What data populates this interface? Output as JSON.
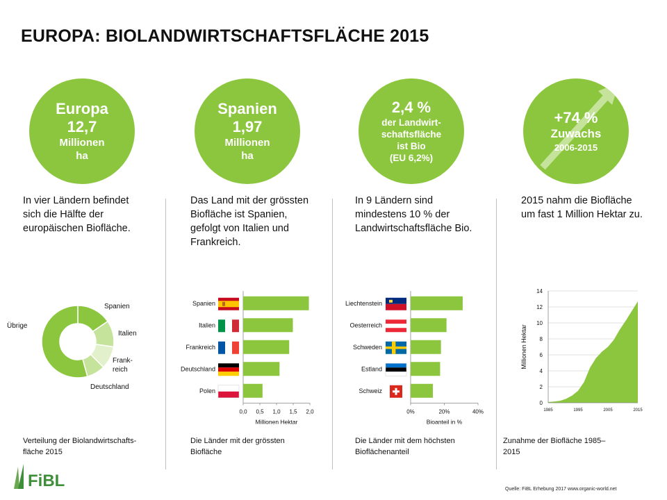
{
  "title": "EUROPA: BIOLANDWIRTSCHAFTSFLÄCHE 2015",
  "stats": [
    {
      "lines": [
        "Europa",
        "12,7",
        "Millionen",
        "ha"
      ]
    },
    {
      "lines": [
        "Spanien",
        "1,97",
        "Millionen",
        "ha"
      ]
    },
    {
      "lines": [
        "2,4 %",
        "der Landwirt-",
        "schaftsfläche",
        "ist Bio",
        "(EU 6,2%)"
      ]
    },
    {
      "lines": [
        "+74 %",
        "Zuwachs",
        "2006-2015"
      ]
    }
  ],
  "descriptions": [
    "In vier Ländern befindet sich die Hälfte der europäischen Biofläche.",
    "Das Land mit der grössten Biofläche ist Spanien, gefolgt von Italien und Frankreich.",
    "In 9 Ländern sind mindestens 10 % der Landwirtschaftsfläche Bio.",
    "2015 nahm die Biofläche um fast 1 Million Hektar zu."
  ],
  "captions": [
    "Verteilung der Biolandwirtschafts-\nfläche 2015",
    "Die Länder mit der grössten\nBiofläche",
    "Die Länder mit dem höchsten\nBioflächenanteil",
    "Zunahme der Biofläche 1985–\n2015"
  ],
  "source": "Quelle: FiBL Erhebung 2017 www.organic-world.net",
  "logo_text": "FiBL",
  "colors": {
    "green": "#8cc63f",
    "light_green": "#c5e39a",
    "pale_green": "#e2f1cc"
  },
  "chart_data": [
    {
      "type": "pie",
      "subtype": "donut",
      "categories": [
        "Spanien",
        "Italien",
        "Frank-\nreich",
        "Deutschland",
        "Übrige"
      ],
      "values": [
        15.5,
        11.8,
        10.2,
        8.2,
        54.3
      ],
      "unit": "%"
    },
    {
      "type": "bar",
      "orientation": "horizontal",
      "categories": [
        "Spanien",
        "Italien",
        "Frankreich",
        "Deutschland",
        "Polen"
      ],
      "flags": [
        "flag-spain",
        "flag-italy",
        "flag-france",
        "flag-germany",
        "flag-poland"
      ],
      "values": [
        1.97,
        1.49,
        1.38,
        1.09,
        0.58
      ],
      "xlabel": "Millionen Hektar",
      "xlim": [
        0,
        2.0
      ],
      "xticks": [
        "0,0",
        "0,5",
        "1,0",
        "1,5",
        "2,0"
      ]
    },
    {
      "type": "bar",
      "orientation": "horizontal",
      "categories": [
        "Liechtenstein",
        "Oesterreich",
        "Schweden",
        "Estland",
        "Schweiz"
      ],
      "flags": [
        "flag-liechtenstein",
        "flag-austria",
        "flag-sweden",
        "flag-estonia",
        "flag-switzerland"
      ],
      "values": [
        30.9,
        21.3,
        18.0,
        17.5,
        13.2
      ],
      "xlabel": "Bioanteil in %",
      "xlim": [
        0,
        40
      ],
      "xticks": [
        "0%",
        "20%",
        "40%"
      ]
    },
    {
      "type": "area",
      "x": [
        1985,
        1987,
        1989,
        1991,
        1993,
        1995,
        1997,
        1999,
        2001,
        2003,
        2005,
        2007,
        2009,
        2011,
        2013,
        2015
      ],
      "values": [
        0.1,
        0.15,
        0.25,
        0.5,
        0.9,
        1.5,
        2.6,
        4.4,
        5.6,
        6.4,
        7.0,
        7.9,
        9.2,
        10.3,
        11.5,
        12.7
      ],
      "ylabel": "Millionen Hektar",
      "ylim": [
        0,
        14
      ],
      "yticks": [
        "0",
        "2",
        "4",
        "6",
        "8",
        "10",
        "12",
        "14"
      ],
      "xticks": [
        "1985",
        "1995",
        "2005",
        "2015"
      ]
    }
  ]
}
